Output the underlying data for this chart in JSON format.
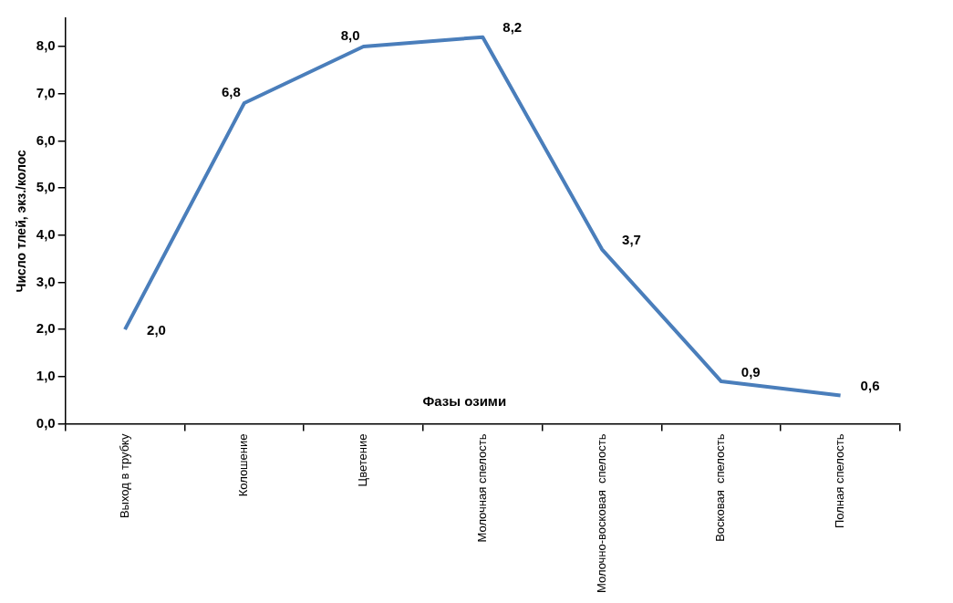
{
  "chart_data": {
    "type": "line",
    "xlabel": "Фазы озими",
    "ylabel": "Число тлей, экз./колос",
    "categories": [
      "Выход в трубку",
      "Колошение",
      "Цветение",
      "Молочная спелость",
      "Молочно-восковая  спелость",
      "Восковая  спелость",
      "Полная спелость"
    ],
    "series": [
      {
        "color": "#4a7ebb",
        "values": [
          2.0,
          6.8,
          8.0,
          8.2,
          3.7,
          0.9,
          0.6
        ],
        "value_labels": [
          "2,0",
          "6,8",
          "8,0",
          "8,2",
          "3,7",
          "0,9",
          "0,6"
        ]
      }
    ],
    "ylim": [
      0,
      8.6
    ],
    "yticks": [
      {
        "value": 0,
        "label": "0,0"
      },
      {
        "value": 1,
        "label": "1,0"
      },
      {
        "value": 2,
        "label": "2,0"
      },
      {
        "value": 3,
        "label": "3,0"
      },
      {
        "value": 4,
        "label": "4,0"
      },
      {
        "value": 5,
        "label": "5,0"
      },
      {
        "value": 6,
        "label": "6,0"
      },
      {
        "value": 7,
        "label": "7,0"
      },
      {
        "value": 8,
        "label": "8,0"
      }
    ],
    "grid": false,
    "legend": false,
    "marker": "none",
    "line_style": "solid"
  }
}
